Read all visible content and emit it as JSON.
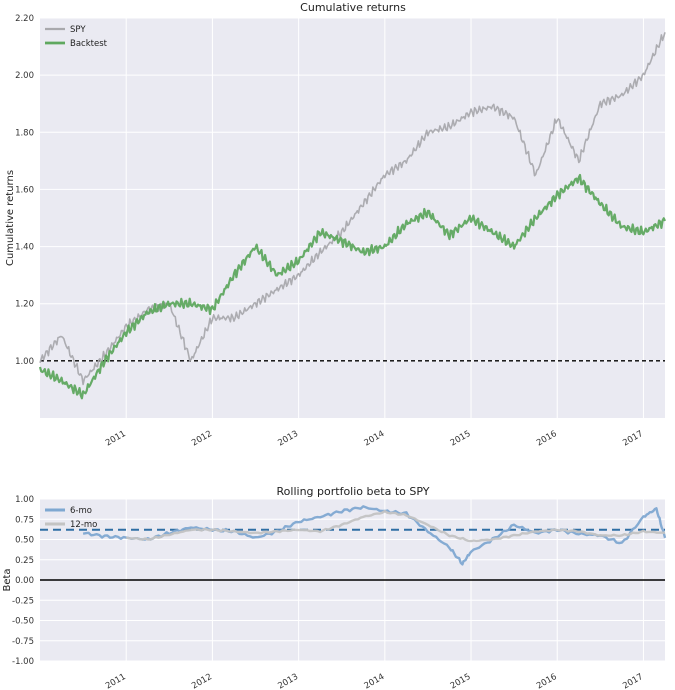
{
  "colors": {
    "background": "#eaeaf2",
    "grid": "#ffffff",
    "spy": "#a9a9ad",
    "backtest": "#5fa85f",
    "six_mo": "#7fa8d1",
    "twelve_mo": "#c3c3c3",
    "mean_line": "#2f6ea4"
  },
  "chart_data": [
    {
      "type": "line",
      "title": "Cumulative returns",
      "ylabel": "Cumulative returns",
      "xlabel": "",
      "x_range": [
        2010.0,
        2017.25
      ],
      "ylim": [
        0.8,
        2.2
      ],
      "yticks": [
        "2.20",
        "2.00",
        "1.80",
        "1.60",
        "1.40",
        "1.20",
        "1.00"
      ],
      "ytick_values": [
        2.2,
        2.0,
        1.8,
        1.6,
        1.4,
        1.2,
        1.0
      ],
      "xticks": [
        "2011",
        "2012",
        "2013",
        "2014",
        "2015",
        "2016",
        "2017"
      ],
      "xtick_values": [
        2011,
        2012,
        2013,
        2014,
        2015,
        2016,
        2017
      ],
      "grid": true,
      "legend": "top-left",
      "reference_line": {
        "y": 1.0,
        "style": "dashed",
        "color": "#000000"
      },
      "x": [
        2010.0,
        2010.25,
        2010.5,
        2010.75,
        2011.0,
        2011.25,
        2011.5,
        2011.75,
        2012.0,
        2012.25,
        2012.5,
        2012.75,
        2013.0,
        2013.25,
        2013.5,
        2013.75,
        2014.0,
        2014.25,
        2014.5,
        2014.75,
        2015.0,
        2015.25,
        2015.5,
        2015.75,
        2016.0,
        2016.25,
        2016.5,
        2016.75,
        2017.0,
        2017.25
      ],
      "series": [
        {
          "name": "SPY",
          "values": [
            1.0,
            1.09,
            0.93,
            1.02,
            1.12,
            1.18,
            1.2,
            1.0,
            1.15,
            1.15,
            1.2,
            1.25,
            1.3,
            1.38,
            1.45,
            1.55,
            1.65,
            1.7,
            1.8,
            1.82,
            1.87,
            1.89,
            1.85,
            1.65,
            1.85,
            1.7,
            1.9,
            1.93,
            2.0,
            2.15
          ]
        },
        {
          "name": "Backtest",
          "values": [
            0.97,
            0.93,
            0.88,
            1.0,
            1.1,
            1.17,
            1.2,
            1.2,
            1.18,
            1.3,
            1.4,
            1.3,
            1.35,
            1.45,
            1.42,
            1.38,
            1.4,
            1.48,
            1.52,
            1.44,
            1.5,
            1.45,
            1.4,
            1.5,
            1.58,
            1.64,
            1.55,
            1.47,
            1.45,
            1.49
          ]
        }
      ]
    },
    {
      "type": "line",
      "title": "Rolling portfolio beta to SPY",
      "ylabel": "Beta",
      "xlabel": "",
      "x_range": [
        2010.0,
        2017.25
      ],
      "ylim": [
        -1.0,
        1.0
      ],
      "yticks": [
        "1.00",
        "0.75",
        "0.50",
        "0.25",
        "0.00",
        "-0.25",
        "-0.50",
        "-0.75",
        "-1.00"
      ],
      "ytick_values": [
        1.0,
        0.75,
        0.5,
        0.25,
        0.0,
        -0.25,
        -0.5,
        -0.75,
        -1.0
      ],
      "xticks": [
        "2011",
        "2012",
        "2013",
        "2014",
        "2015",
        "2016",
        "2017"
      ],
      "xtick_values": [
        2011,
        2012,
        2013,
        2014,
        2015,
        2016,
        2017
      ],
      "grid": true,
      "legend": "top-left",
      "reference_lines": [
        {
          "y": 0.62,
          "style": "dashed",
          "color": "#2f6ea4"
        },
        {
          "y": 0.0,
          "style": "solid",
          "color": "#000000"
        }
      ],
      "series": [
        {
          "name": "6-mo",
          "x": [
            2010.5,
            2010.75,
            2011.0,
            2011.25,
            2011.5,
            2011.75,
            2012.0,
            2012.25,
            2012.5,
            2012.75,
            2013.0,
            2013.25,
            2013.5,
            2013.75,
            2014.0,
            2014.25,
            2014.5,
            2014.75,
            2014.9,
            2015.0,
            2015.25,
            2015.5,
            2015.75,
            2016.0,
            2016.25,
            2016.5,
            2016.75,
            2017.0,
            2017.15,
            2017.25
          ],
          "values": [
            0.58,
            0.54,
            0.52,
            0.5,
            0.58,
            0.65,
            0.62,
            0.6,
            0.52,
            0.6,
            0.72,
            0.78,
            0.85,
            0.9,
            0.85,
            0.82,
            0.6,
            0.4,
            0.2,
            0.35,
            0.5,
            0.68,
            0.58,
            0.62,
            0.57,
            0.55,
            0.45,
            0.78,
            0.88,
            0.52
          ]
        },
        {
          "name": "12-mo",
          "x": [
            2011.0,
            2011.25,
            2011.5,
            2011.75,
            2012.0,
            2012.25,
            2012.5,
            2012.75,
            2013.0,
            2013.25,
            2013.5,
            2013.75,
            2014.0,
            2014.25,
            2014.5,
            2014.75,
            2015.0,
            2015.25,
            2015.5,
            2015.75,
            2016.0,
            2016.25,
            2016.5,
            2016.75,
            2017.0,
            2017.25
          ],
          "values": [
            0.52,
            0.5,
            0.56,
            0.62,
            0.62,
            0.6,
            0.58,
            0.6,
            0.62,
            0.6,
            0.68,
            0.78,
            0.84,
            0.8,
            0.68,
            0.55,
            0.48,
            0.5,
            0.55,
            0.6,
            0.62,
            0.6,
            0.55,
            0.55,
            0.6,
            0.58
          ]
        }
      ]
    }
  ]
}
